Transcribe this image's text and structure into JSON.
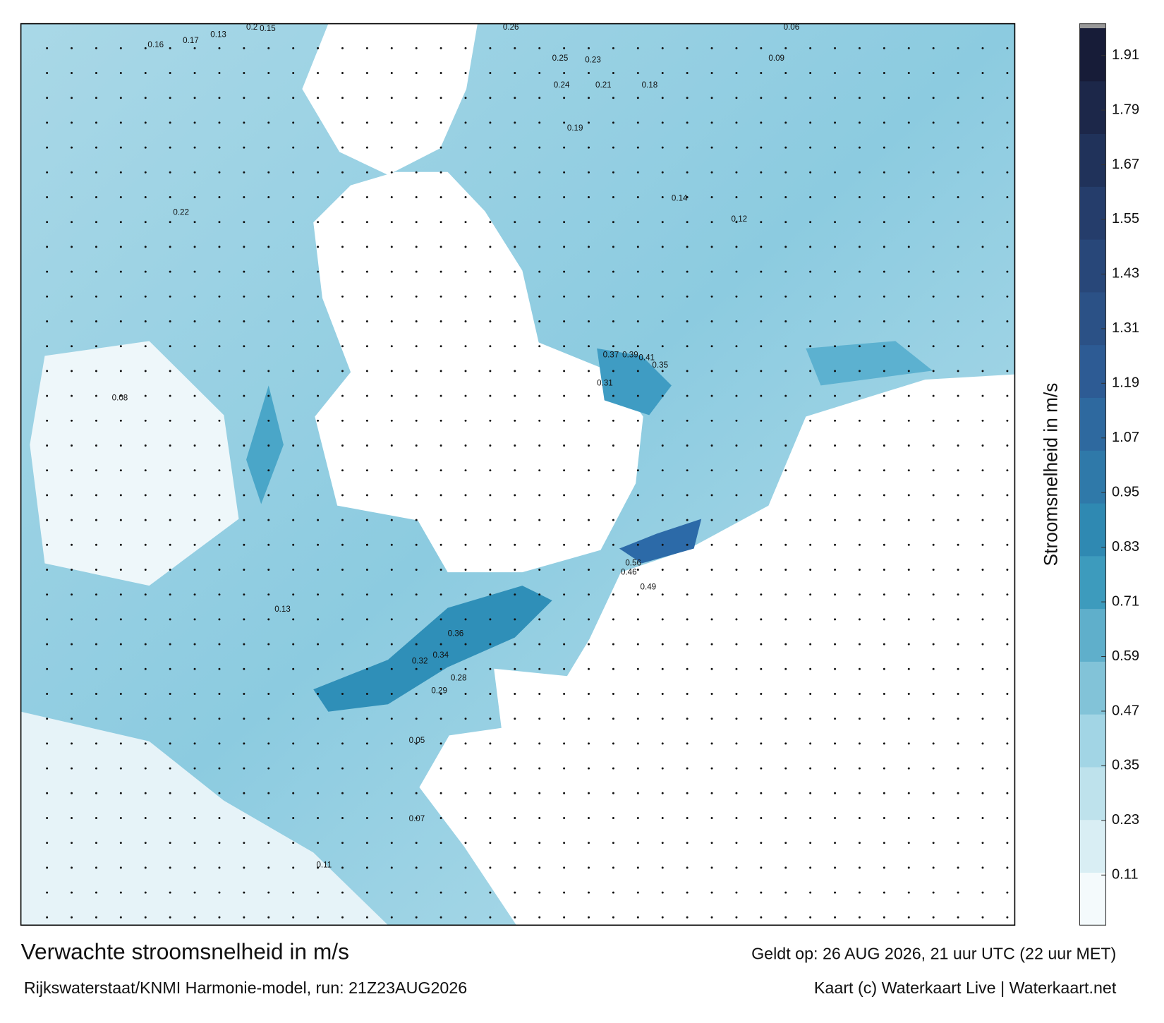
{
  "map": {
    "title": "Verwachte stroomsnelheid in m/s",
    "valid_time": "Geldt op: 26 AUG 2026, 21 uur UTC (22 uur MET)",
    "source": "Rijkswaterstaat/KNMI Harmonie-model, run: 21Z23AUG2026",
    "credit": "Kaart (c) Waterkaart Live | Waterkaart.net",
    "colorbar": {
      "label": "Stroomsnelheid in m/s",
      "clim": [
        0,
        1.97
      ],
      "ticks": [
        0.11,
        0.23,
        0.35,
        0.47,
        0.59,
        0.71,
        0.83,
        0.95,
        1.07,
        1.19,
        1.31,
        1.43,
        1.55,
        1.67,
        1.79,
        1.91
      ],
      "colors": [
        "#f4fafc",
        "#9dd3e3",
        "#2f93b8",
        "#2e5f99",
        "#263f6e",
        "#171c38"
      ]
    },
    "speed_labels": [
      0.16,
      0.17,
      0.13,
      0.2,
      0.15,
      0.23,
      0.26,
      0.25,
      0.24,
      0.21,
      0.18,
      0.14,
      0.12,
      0.09,
      0.06,
      0.37,
      0.39,
      0.41,
      0.35,
      0.31,
      0.56,
      0.46,
      0.49,
      0.36,
      0.32,
      0.34,
      0.29,
      0.28,
      0.22,
      0.11,
      0.08,
      0.07,
      0.05,
      0.13,
      0.19
    ]
  }
}
